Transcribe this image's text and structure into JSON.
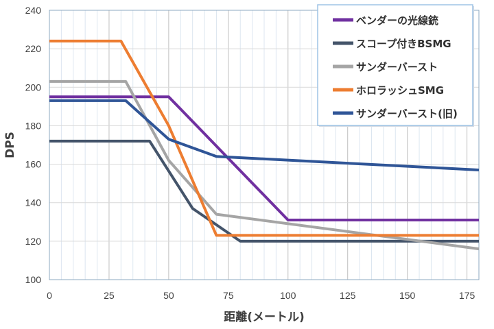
{
  "chart_data": {
    "type": "line",
    "title": "",
    "xlabel": "距離(メートル)",
    "ylabel": "DPS",
    "xlim": [
      0,
      180
    ],
    "ylim": [
      100,
      240
    ],
    "x_ticks": [
      "0",
      "25",
      "50",
      "75",
      "100",
      "125",
      "150",
      "175"
    ],
    "y_ticks": [
      "100",
      "120",
      "140",
      "160",
      "180",
      "200",
      "220",
      "240"
    ],
    "grid": "minor vertical every 5, major vertical every 25, major horizontal every 20",
    "legend_position": "top-right",
    "series": [
      {
        "name": "ベンダーの光線銃",
        "color": "#7030A0",
        "points": [
          [
            0,
            195
          ],
          [
            50,
            195
          ],
          [
            100,
            131
          ],
          [
            180,
            131
          ]
        ]
      },
      {
        "name": "スコープ付きBSMG",
        "color": "#44546A",
        "points": [
          [
            0,
            172
          ],
          [
            42,
            172
          ],
          [
            60,
            137
          ],
          [
            80,
            120
          ],
          [
            180,
            120
          ]
        ]
      },
      {
        "name": "サンダーバースト",
        "color": "#A5A5A5",
        "points": [
          [
            0,
            203
          ],
          [
            32,
            203
          ],
          [
            50,
            162
          ],
          [
            70,
            134
          ],
          [
            180,
            116
          ]
        ]
      },
      {
        "name": "ホロラッシュSMG",
        "color": "#ED7D31",
        "points": [
          [
            0,
            224
          ],
          [
            30,
            224
          ],
          [
            50,
            180
          ],
          [
            70,
            123
          ],
          [
            180,
            123
          ]
        ]
      },
      {
        "name": "サンダーバースト(旧)",
        "color": "#2F5597",
        "points": [
          [
            0,
            193
          ],
          [
            32,
            193
          ],
          [
            50,
            173
          ],
          [
            70,
            164
          ],
          [
            180,
            157
          ]
        ]
      }
    ]
  }
}
